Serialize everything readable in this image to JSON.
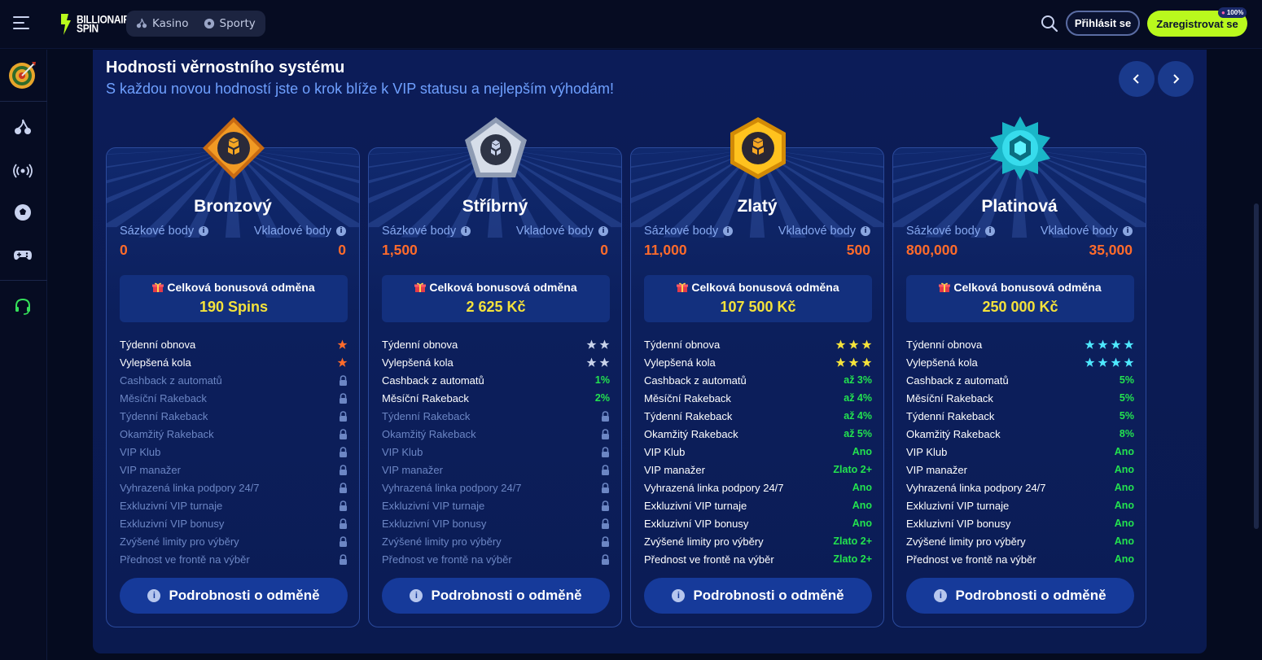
{
  "header": {
    "logo_line1": "BILLIONAIRE",
    "logo_line2": "SPIN",
    "nav": [
      {
        "label": "Kasino",
        "icon": "cherries-icon"
      },
      {
        "label": "Sporty",
        "icon": "soccer-ball-icon"
      }
    ],
    "login_label": "Přihlásit se",
    "register_label": "Zaregistrovat se",
    "register_badge": "100%"
  },
  "sidebar": {
    "items": [
      "target-icon",
      "cherries-icon",
      "live-broadcast-icon",
      "soccer-ball-icon",
      "gamepad-icon",
      "headset-icon"
    ]
  },
  "section": {
    "title": "Hodnosti věrnostního systému",
    "subtitle": "S každou novou hodností jste o krok blíže k VIP statusu a nejlepším výhodám!"
  },
  "colors": {
    "accent": "#b9f91d",
    "points": "#ff6b2b",
    "reward": "#f4e23b",
    "perk_value": "#23e34f"
  },
  "tiers": [
    {
      "name": "Bronzový",
      "bet_label": "Sázkové body",
      "deposit_label": "Vkladové body",
      "bet_points": "0",
      "deposit_points": "0",
      "reward_label": "Celková bonusová odměna",
      "reward_value": "190 Spins",
      "details_label": "Podrobnosti o odměně",
      "perks": [
        {
          "label": "Týdenní obnova",
          "type": "stars",
          "stars": 1,
          "color": "#ff6b2b"
        },
        {
          "label": "Vylepšená kola",
          "type": "stars",
          "stars": 1,
          "color": "#ff6b2b"
        },
        {
          "label": "Cashback z automatů",
          "type": "lock"
        },
        {
          "label": "Měsíční Rakeback",
          "type": "lock"
        },
        {
          "label": "Týdenní Rakeback",
          "type": "lock"
        },
        {
          "label": "Okamžitý Rakeback",
          "type": "lock"
        },
        {
          "label": "VIP Klub",
          "type": "lock"
        },
        {
          "label": "VIP manažer",
          "type": "lock"
        },
        {
          "label": "Vyhrazená linka podpory 24/7",
          "type": "lock"
        },
        {
          "label": "Exkluzivní VIP turnaje",
          "type": "lock"
        },
        {
          "label": "Exkluzivní VIP bonusy",
          "type": "lock"
        },
        {
          "label": "Zvýšené limity pro výběry",
          "type": "lock"
        },
        {
          "label": "Přednost ve frontě na výběr",
          "type": "lock"
        }
      ]
    },
    {
      "name": "Stříbrný",
      "bet_label": "Sázkové body",
      "deposit_label": "Vkladové body",
      "bet_points": "1,500",
      "deposit_points": "0",
      "reward_label": "Celková bonusová odměna",
      "reward_value": "2 625 Kč",
      "details_label": "Podrobnosti o odměně",
      "perks": [
        {
          "label": "Týdenní obnova",
          "type": "stars",
          "stars": 2,
          "color": "#c8d2ea"
        },
        {
          "label": "Vylepšená kola",
          "type": "stars",
          "stars": 2,
          "color": "#c8d2ea"
        },
        {
          "label": "Cashback z automatů",
          "type": "value",
          "value": "1%"
        },
        {
          "label": "Měsíční Rakeback",
          "type": "value",
          "value": "2%"
        },
        {
          "label": "Týdenní Rakeback",
          "type": "lock"
        },
        {
          "label": "Okamžitý Rakeback",
          "type": "lock"
        },
        {
          "label": "VIP Klub",
          "type": "lock"
        },
        {
          "label": "VIP manažer",
          "type": "lock"
        },
        {
          "label": "Vyhrazená linka podpory 24/7",
          "type": "lock"
        },
        {
          "label": "Exkluzivní VIP turnaje",
          "type": "lock"
        },
        {
          "label": "Exkluzivní VIP bonusy",
          "type": "lock"
        },
        {
          "label": "Zvýšené limity pro výběry",
          "type": "lock"
        },
        {
          "label": "Přednost ve frontě na výběr",
          "type": "lock"
        }
      ]
    },
    {
      "name": "Zlatý",
      "bet_label": "Sázkové body",
      "deposit_label": "Vkladové body",
      "bet_points": "11,000",
      "deposit_points": "500",
      "reward_label": "Celková bonusová odměna",
      "reward_value": "107 500 Kč",
      "details_label": "Podrobnosti o odměně",
      "perks": [
        {
          "label": "Týdenní obnova",
          "type": "stars",
          "stars": 3,
          "color": "#f4e23b"
        },
        {
          "label": "Vylepšená kola",
          "type": "stars",
          "stars": 3,
          "color": "#f4e23b"
        },
        {
          "label": "Cashback z automatů",
          "type": "value",
          "value": "až 3%"
        },
        {
          "label": "Měsíční Rakeback",
          "type": "value",
          "value": "až 4%"
        },
        {
          "label": "Týdenní Rakeback",
          "type": "value",
          "value": "až 4%"
        },
        {
          "label": "Okamžitý Rakeback",
          "type": "value",
          "value": "až 5%"
        },
        {
          "label": "VIP Klub",
          "type": "value",
          "value": "Ano"
        },
        {
          "label": "VIP manažer",
          "type": "value",
          "value": "Zlato 2+"
        },
        {
          "label": "Vyhrazená linka podpory 24/7",
          "type": "value",
          "value": "Ano"
        },
        {
          "label": "Exkluzivní VIP turnaje",
          "type": "value",
          "value": "Ano"
        },
        {
          "label": "Exkluzivní VIP bonusy",
          "type": "value",
          "value": "Ano"
        },
        {
          "label": "Zvýšené limity pro výběry",
          "type": "value",
          "value": "Zlato 2+"
        },
        {
          "label": "Přednost ve frontě na výběr",
          "type": "value",
          "value": "Zlato 2+"
        }
      ]
    },
    {
      "name": "Platinová",
      "bet_label": "Sázkové body",
      "deposit_label": "Vkladové body",
      "bet_points": "800,000",
      "deposit_points": "35,000",
      "reward_label": "Celková bonusová odměna",
      "reward_value": "250 000 Kč",
      "details_label": "Podrobnosti o odměně",
      "perks": [
        {
          "label": "Týdenní obnova",
          "type": "stars",
          "stars": 4,
          "color": "#4ee7ff"
        },
        {
          "label": "Vylepšená kola",
          "type": "stars",
          "stars": 4,
          "color": "#4ee7ff"
        },
        {
          "label": "Cashback z automatů",
          "type": "value",
          "value": "5%"
        },
        {
          "label": "Měsíční Rakeback",
          "type": "value",
          "value": "5%"
        },
        {
          "label": "Týdenní Rakeback",
          "type": "value",
          "value": "5%"
        },
        {
          "label": "Okamžitý Rakeback",
          "type": "value",
          "value": "8%"
        },
        {
          "label": "VIP Klub",
          "type": "value",
          "value": "Ano"
        },
        {
          "label": "VIP manažer",
          "type": "value",
          "value": "Ano"
        },
        {
          "label": "Vyhrazená linka podpory 24/7",
          "type": "value",
          "value": "Ano"
        },
        {
          "label": "Exkluzivní VIP turnaje",
          "type": "value",
          "value": "Ano"
        },
        {
          "label": "Exkluzivní VIP bonusy",
          "type": "value",
          "value": "Ano"
        },
        {
          "label": "Zvýšené limity pro výběry",
          "type": "value",
          "value": "Ano"
        },
        {
          "label": "Přednost ve frontě na výběr",
          "type": "value",
          "value": "Ano"
        }
      ]
    }
  ]
}
